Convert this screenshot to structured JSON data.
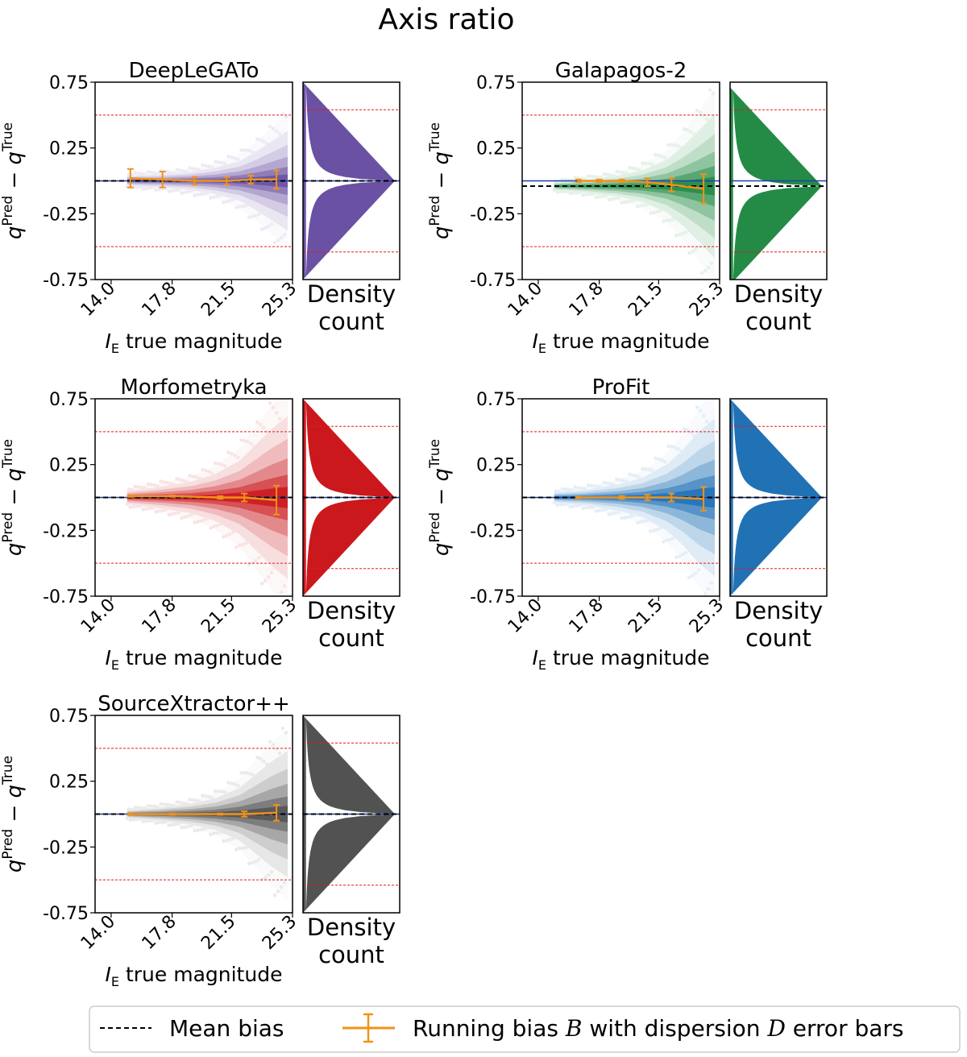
{
  "figure": {
    "title": "Axis ratio",
    "legend": {
      "position": "bottom",
      "mean_bias_label": "Mean bias",
      "running_bias_prefix": "Running bias ",
      "running_bias_b": "B",
      "running_bias_mid": " with dispersion ",
      "running_bias_d": "D",
      "running_bias_suffix": " error bars"
    }
  },
  "chart_data": [
    {
      "type": "scatter",
      "title": "DeepLeGATo",
      "color": "#6a51a3",
      "xlabel_symbol": "I",
      "xlabel_sub": "E",
      "xlabel_rest": " true magnitude",
      "ylabel_main": "q",
      "ylabel_pred": "Pred",
      "ylabel_minus": " − ",
      "ylabel_true": "True",
      "density_label_line1": "Density",
      "density_label_line2": "count",
      "xlim": [
        13.0,
        25.3
      ],
      "ylim": [
        -0.75,
        0.75
      ],
      "xticks": [
        14.0,
        17.8,
        21.5,
        25.3
      ],
      "xtick_labels": [
        "14.0",
        "17.8",
        "21.5",
        "25.3"
      ],
      "yticks": [
        0.75,
        0.25,
        -0.25,
        -0.75
      ],
      "ytick_labels": [
        "0.75",
        "0.25",
        "-0.25",
        "-0.75"
      ],
      "mean_bias": 0.0,
      "zero_line": 0.0,
      "red_lines_main": [
        0.5,
        -0.5
      ],
      "red_lines_density": [
        0.54,
        -0.54
      ],
      "running_bias": {
        "x": [
          15.2,
          17.2,
          19.2,
          21.2,
          22.7,
          24.3
        ],
        "y": [
          0.02,
          0.01,
          0.0,
          0.0,
          0.01,
          0.01
        ],
        "err": [
          0.07,
          0.06,
          0.03,
          0.03,
          0.03,
          0.07
        ]
      },
      "spread_envelope": {
        "x": [
          15.0,
          17.0,
          19.0,
          20.5,
          22.0,
          23.0,
          24.0,
          25.0
        ],
        "half_width": [
          0.04,
          0.05,
          0.07,
          0.1,
          0.15,
          0.22,
          0.3,
          0.38
        ]
      }
    },
    {
      "type": "scatter",
      "title": "Galapagos-2",
      "color": "#238b45",
      "xlabel_symbol": "I",
      "xlabel_sub": "E",
      "xlabel_rest": " true magnitude",
      "ylabel_main": "q",
      "ylabel_pred": "Pred",
      "ylabel_minus": " − ",
      "ylabel_true": "True",
      "density_label_line1": "Density",
      "density_label_line2": "count",
      "xlim": [
        13.0,
        25.3
      ],
      "ylim": [
        -0.75,
        0.75
      ],
      "xticks": [
        14.0,
        17.8,
        21.5,
        25.3
      ],
      "xtick_labels": [
        "14.0",
        "17.8",
        "21.5",
        "25.3"
      ],
      "yticks": [
        0.75,
        0.25,
        -0.25,
        -0.75
      ],
      "ytick_labels": [
        "0.75",
        "0.25",
        "-0.25",
        "-0.75"
      ],
      "mean_bias": -0.04,
      "zero_line": 0.0,
      "red_lines_main": [
        0.5,
        -0.5
      ],
      "red_lines_density": [
        0.54,
        -0.54
      ],
      "running_bias": {
        "x": [
          16.5,
          17.8,
          19.2,
          20.8,
          22.3,
          24.3
        ],
        "y": [
          0.0,
          0.0,
          0.0,
          -0.01,
          -0.03,
          -0.06
        ],
        "err": [
          0.01,
          0.01,
          0.01,
          0.03,
          0.05,
          0.11
        ]
      },
      "spread_envelope": {
        "x": [
          15.0,
          17.0,
          19.0,
          20.5,
          22.0,
          23.0,
          24.0,
          25.0
        ],
        "half_width": [
          0.03,
          0.05,
          0.08,
          0.12,
          0.2,
          0.3,
          0.42,
          0.55
        ]
      }
    },
    {
      "type": "scatter",
      "title": "Morfometryka",
      "color": "#cb181d",
      "xlabel_symbol": "I",
      "xlabel_sub": "E",
      "xlabel_rest": " true magnitude",
      "ylabel_main": "q",
      "ylabel_pred": "Pred",
      "ylabel_minus": " − ",
      "ylabel_true": "True",
      "density_label_line1": "Density",
      "density_label_line2": "count",
      "xlim": [
        13.0,
        25.3
      ],
      "ylim": [
        -0.75,
        0.75
      ],
      "xticks": [
        14.0,
        17.8,
        21.5,
        25.3
      ],
      "xtick_labels": [
        "14.0",
        "17.8",
        "21.5",
        "25.3"
      ],
      "yticks": [
        0.75,
        0.25,
        -0.25,
        -0.75
      ],
      "ytick_labels": [
        "0.75",
        "0.25",
        "-0.25",
        "-0.75"
      ],
      "mean_bias": 0.0,
      "zero_line": 0.0,
      "red_lines_main": [
        0.5,
        -0.5
      ],
      "red_lines_density": [
        0.54,
        -0.54
      ],
      "running_bias": {
        "x": [
          15.2,
          17.8,
          20.8,
          22.3,
          24.3
        ],
        "y": [
          0.01,
          0.01,
          0.0,
          0.0,
          -0.02
        ],
        "err": [
          0.005,
          0.005,
          0.01,
          0.03,
          0.11
        ]
      },
      "spread_envelope": {
        "x": [
          15.0,
          17.0,
          19.0,
          20.5,
          22.0,
          23.0,
          24.0,
          25.0
        ],
        "half_width": [
          0.05,
          0.08,
          0.12,
          0.18,
          0.28,
          0.4,
          0.52,
          0.62
        ]
      }
    },
    {
      "type": "scatter",
      "title": "ProFit",
      "color": "#2171b5",
      "xlabel_symbol": "I",
      "xlabel_sub": "E",
      "xlabel_rest": " true magnitude",
      "ylabel_main": "q",
      "ylabel_pred": "Pred",
      "ylabel_minus": " − ",
      "ylabel_true": "True",
      "density_label_line1": "Density",
      "density_label_line2": "count",
      "xlim": [
        13.0,
        25.3
      ],
      "ylim": [
        -0.75,
        0.75
      ],
      "xticks": [
        14.0,
        17.8,
        21.5,
        25.3
      ],
      "xtick_labels": [
        "14.0",
        "17.8",
        "21.5",
        "25.3"
      ],
      "yticks": [
        0.75,
        0.25,
        -0.25,
        -0.75
      ],
      "ytick_labels": [
        "0.75",
        "0.25",
        "-0.25",
        "-0.75"
      ],
      "mean_bias": 0.0,
      "zero_line": 0.0,
      "red_lines_main": [
        0.5,
        -0.5
      ],
      "red_lines_density": [
        0.54,
        -0.54
      ],
      "running_bias": {
        "x": [
          16.5,
          19.2,
          20.8,
          22.3,
          24.3
        ],
        "y": [
          0.0,
          0.0,
          0.0,
          0.0,
          -0.01
        ],
        "err": [
          0.005,
          0.01,
          0.02,
          0.03,
          0.09
        ]
      },
      "spread_envelope": {
        "x": [
          15.0,
          17.0,
          19.0,
          20.5,
          22.0,
          23.0,
          24.0,
          25.0
        ],
        "half_width": [
          0.04,
          0.06,
          0.1,
          0.15,
          0.25,
          0.36,
          0.5,
          0.6
        ]
      }
    },
    {
      "type": "scatter",
      "title": "SourceXtractor++",
      "color": "#525252",
      "xlabel_symbol": "I",
      "xlabel_sub": "E",
      "xlabel_rest": " true magnitude",
      "ylabel_main": "q",
      "ylabel_pred": "Pred",
      "ylabel_minus": " − ",
      "ylabel_true": "True",
      "density_label_line1": "Density",
      "density_label_line2": "count",
      "xlim": [
        13.0,
        25.3
      ],
      "ylim": [
        -0.75,
        0.75
      ],
      "xticks": [
        14.0,
        17.8,
        21.5,
        25.3
      ],
      "xtick_labels": [
        "14.0",
        "17.8",
        "21.5",
        "25.3"
      ],
      "yticks": [
        0.75,
        0.25,
        -0.25,
        -0.75
      ],
      "ytick_labels": [
        "0.75",
        "0.25",
        "-0.25",
        "-0.75"
      ],
      "mean_bias": 0.0,
      "zero_line": 0.0,
      "red_lines_main": [
        0.5,
        -0.5
      ],
      "red_lines_density": [
        0.54,
        -0.54
      ],
      "running_bias": {
        "x": [
          15.2,
          17.8,
          20.8,
          22.3,
          24.3
        ],
        "y": [
          0.0,
          0.0,
          0.0,
          0.0,
          0.01
        ],
        "err": [
          0.005,
          0.005,
          0.005,
          0.02,
          0.06
        ]
      },
      "spread_envelope": {
        "x": [
          15.0,
          17.0,
          19.0,
          20.5,
          22.0,
          23.0,
          24.0,
          25.0
        ],
        "half_width": [
          0.03,
          0.05,
          0.08,
          0.12,
          0.2,
          0.3,
          0.4,
          0.48
        ]
      }
    }
  ]
}
